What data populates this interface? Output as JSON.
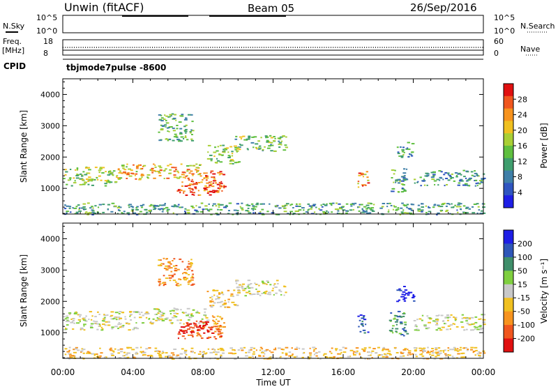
{
  "header": {
    "title": "Unwin (fitACF)",
    "beam": "Beam 05",
    "date": "26/Sep/2016"
  },
  "top_panel": {
    "nsky_label": "N.Sky",
    "nsky_ticks": [
      "10^5",
      "10^0"
    ],
    "nsearch_label": "N.Search",
    "nsearch_ticks": [
      "10^5",
      "10^0"
    ],
    "freq_label": "Freq.",
    "freq_unit": "[MHz]",
    "freq_ticks": [
      "18",
      "8"
    ],
    "nave_label": "Nave",
    "nave_ticks": [
      "60",
      "0"
    ],
    "cpid_label": "CPID",
    "cpid_value": "tbjmode7pulse -8600"
  },
  "chart_data": [
    {
      "type": "heatmap",
      "panel": "power",
      "ylabel": "Slant Range [km]",
      "xlabel": "Time UT",
      "x_ticks": [
        "00:00",
        "04:00",
        "08:00",
        "12:00",
        "16:00",
        "20:00",
        "00:00"
      ],
      "xlim_hours": [
        0,
        24
      ],
      "ylim_km": [
        180,
        4500
      ],
      "y_ticks": [
        1000,
        2000,
        3000,
        4000
      ],
      "colorbar": {
        "label": "Power [dB]",
        "ticks": [
          4,
          8,
          12,
          16,
          20,
          24,
          28
        ],
        "range": [
          0,
          32
        ],
        "colors": [
          "#1e1ee6",
          "#2f55c0",
          "#3f7fa8",
          "#3f9e6e",
          "#5fbf3f",
          "#a9cf35",
          "#f0c020",
          "#f7931e",
          "#f0561e",
          "#e01010"
        ]
      },
      "scatter_regions": [
        {
          "t": [
            0.0,
            3.0
          ],
          "r": [
            1100,
            1700
          ],
          "level": 0.5
        },
        {
          "t": [
            3.0,
            8.2
          ],
          "r": [
            1300,
            1800
          ],
          "level": 0.7
        },
        {
          "t": [
            5.4,
            7.4
          ],
          "r": [
            2500,
            3400
          ],
          "level": 0.4
        },
        {
          "t": [
            6.5,
            9.0
          ],
          "r": [
            800,
            1300
          ],
          "level": 0.85
        },
        {
          "t": [
            8.0,
            9.2
          ],
          "r": [
            900,
            1600
          ],
          "level": 0.9
        },
        {
          "t": [
            8.2,
            10.0
          ],
          "r": [
            1800,
            2400
          ],
          "level": 0.5
        },
        {
          "t": [
            9.8,
            12.7
          ],
          "r": [
            2200,
            2700
          ],
          "level": 0.45
        },
        {
          "t": [
            16.8,
            17.4
          ],
          "r": [
            1000,
            1600
          ],
          "level": 0.75
        },
        {
          "t": [
            18.6,
            19.6
          ],
          "r": [
            900,
            1700
          ],
          "level": 0.35
        },
        {
          "t": [
            19.0,
            20.0
          ],
          "r": [
            2000,
            2500
          ],
          "level": 0.3
        },
        {
          "t": [
            20.0,
            24.0
          ],
          "r": [
            1100,
            1600
          ],
          "level": 0.3
        },
        {
          "t": [
            0.0,
            24.0
          ],
          "r": [
            180,
            550
          ],
          "level": 0.35
        }
      ]
    },
    {
      "type": "heatmap",
      "panel": "velocity",
      "ylabel": "Slant Range [km]",
      "xlabel": "Time UT",
      "x_ticks": [
        "00:00",
        "04:00",
        "08:00",
        "12:00",
        "16:00",
        "20:00",
        "00:00"
      ],
      "xlim_hours": [
        0,
        24
      ],
      "ylim_km": [
        180,
        4500
      ],
      "y_ticks": [
        1000,
        2000,
        3000,
        4000
      ],
      "colorbar": {
        "label": "Velocity [m s⁻¹]",
        "ticks": [
          200,
          100,
          50,
          15,
          -15,
          -50,
          -100,
          -200
        ],
        "colors": [
          "#1e1ee6",
          "#2e56b8",
          "#3f8e6a",
          "#7fcf3f",
          "#c8c8c8",
          "#f0c020",
          "#f7931e",
          "#f0561e",
          "#e01010"
        ]
      },
      "scatter_regions": [
        {
          "t": [
            0.0,
            4.5
          ],
          "r": [
            1100,
            1700
          ],
          "cls": 4
        },
        {
          "t": [
            4.5,
            8.2
          ],
          "r": [
            1300,
            1800
          ],
          "cls": 4
        },
        {
          "t": [
            5.4,
            7.4
          ],
          "r": [
            2500,
            3400
          ],
          "cls": 6
        },
        {
          "t": [
            6.5,
            9.0
          ],
          "r": [
            800,
            1300
          ],
          "cls": 7
        },
        {
          "t": [
            6.5,
            8.5
          ],
          "r": [
            1000,
            1400
          ],
          "cls": 8
        },
        {
          "t": [
            8.5,
            9.2
          ],
          "r": [
            1000,
            1600
          ],
          "cls": 6
        },
        {
          "t": [
            8.2,
            10.0
          ],
          "r": [
            1800,
            2400
          ],
          "cls": 5
        },
        {
          "t": [
            9.8,
            12.7
          ],
          "r": [
            2200,
            2700
          ],
          "cls": 4
        },
        {
          "t": [
            16.8,
            17.4
          ],
          "r": [
            1000,
            1600
          ],
          "cls": 1
        },
        {
          "t": [
            18.6,
            19.6
          ],
          "r": [
            900,
            1700
          ],
          "cls": 2
        },
        {
          "t": [
            19.0,
            20.0
          ],
          "r": [
            2000,
            2500
          ],
          "cls": 0
        },
        {
          "t": [
            20.0,
            24.0
          ],
          "r": [
            1100,
            1600
          ],
          "cls": 4
        },
        {
          "t": [
            0.0,
            24.0
          ],
          "r": [
            180,
            550
          ],
          "cls": 5
        }
      ]
    }
  ]
}
